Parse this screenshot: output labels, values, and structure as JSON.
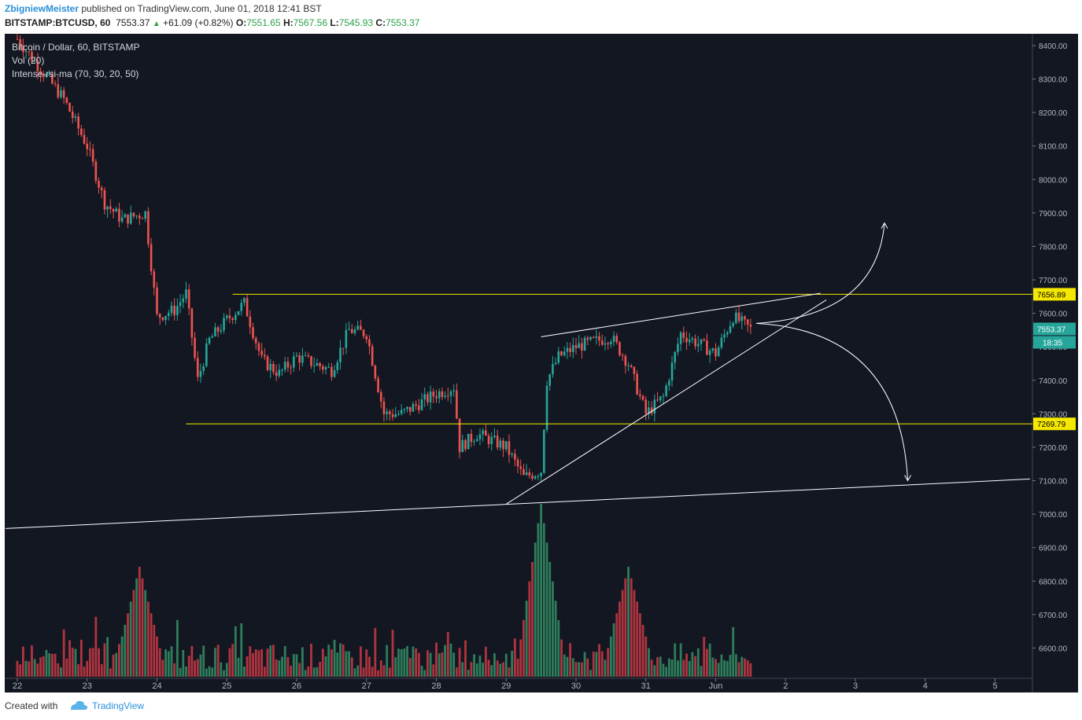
{
  "header": {
    "author": "ZbigniewMeister",
    "published_text": "published on TradingView.com, June 01, 2018 12:41 BST",
    "symbol": "BITSTAMP:BTCUSD, 60",
    "last": "7553.37",
    "change_arrow": "▲",
    "change": "+61.09 (+0.82%)",
    "o_label": "O:",
    "o_value": "7551.65",
    "h_label": "H:",
    "h_value": "7567.56",
    "l_label": "L:",
    "l_value": "7545.93",
    "c_label": "C:",
    "c_value": "7553.37"
  },
  "legend": {
    "main": "Bitcoin / Dollar, 60, BITSTAMP",
    "volume": "Vol (20)",
    "indicator": "Intense-rsi-ma (70, 30, 20, 50)"
  },
  "footer": {
    "created_with": "Created with",
    "brand": "TradingView"
  },
  "chart_data": {
    "type": "candlestick",
    "title": "Bitcoin / Dollar, 60, BITSTAMP",
    "symbol": "BITSTAMP:BTCUSD",
    "timeframe": "60",
    "x_tick_labels": [
      "22",
      "23",
      "24",
      "25",
      "26",
      "27",
      "28",
      "29",
      "30",
      "31",
      "Jun",
      "2",
      "3",
      "4",
      "5"
    ],
    "y_tick_labels": [
      "8400.00",
      "8300.00",
      "8200.00",
      "8100.00",
      "8000.00",
      "7900.00",
      "7800.00",
      "7700.00",
      "7600.00",
      "7500.00",
      "7400.00",
      "7300.00",
      "7200.00",
      "7100.00",
      "7000.00",
      "6900.00",
      "6800.00",
      "6700.00",
      "6600.00"
    ],
    "ylim": [
      6520,
      8430
    ],
    "price_path": [
      [
        "May 22 00:00",
        8420
      ],
      [
        "May 22 08:00",
        8330
      ],
      [
        "May 22 16:00",
        8240
      ],
      [
        "May 23 00:00",
        8100
      ],
      [
        "May 23 06:00",
        7930
      ],
      [
        "May 23 12:00",
        7880
      ],
      [
        "May 23 20:00",
        7900
      ],
      [
        "May 24 00:00",
        7590
      ],
      [
        "May 24 06:00",
        7610
      ],
      [
        "May 24 10:00",
        7660
      ],
      [
        "May 24 14:00",
        7400
      ],
      [
        "May 24 18:00",
        7520
      ],
      [
        "May 25 00:00",
        7580
      ],
      [
        "May 25 06:00",
        7630
      ],
      [
        "May 25 12:00",
        7460
      ],
      [
        "May 25 18:00",
        7420
      ],
      [
        "May 26 00:00",
        7470
      ],
      [
        "May 26 12:00",
        7430
      ],
      [
        "May 26 18:00",
        7550
      ],
      [
        "May 27 00:00",
        7540
      ],
      [
        "May 27 06:00",
        7300
      ],
      [
        "May 27 12:00",
        7300
      ],
      [
        "May 28 00:00",
        7360
      ],
      [
        "May 28 06:00",
        7380
      ],
      [
        "May 28 08:00",
        7200
      ],
      [
        "May 28 14:00",
        7240
      ],
      [
        "May 29 00:00",
        7200
      ],
      [
        "May 29 06:00",
        7110
      ],
      [
        "May 29 12:00",
        7130
      ],
      [
        "May 29 14:00",
        7400
      ],
      [
        "May 29 18:00",
        7470
      ],
      [
        "May 30 00:00",
        7500
      ],
      [
        "May 30 12:00",
        7530
      ],
      [
        "May 30 18:00",
        7450
      ],
      [
        "May 31 00:00",
        7300
      ],
      [
        "May 31 06:00",
        7350
      ],
      [
        "May 31 12:00",
        7540
      ],
      [
        "Jun 01 00:00",
        7480
      ],
      [
        "Jun 01 06:00",
        7590
      ],
      [
        "Jun 01 12:00",
        7553
      ]
    ],
    "volume_spikes": [
      [
        "May 23 18:00",
        "high"
      ],
      [
        "May 29 12:00",
        "max"
      ],
      [
        "May 30 18:00",
        "high"
      ]
    ],
    "price_markers": [
      {
        "label": "7656.89",
        "color": "#f5e800"
      },
      {
        "label": "7553.37",
        "color": "#26a69a"
      },
      {
        "label": "18:35",
        "color": "#26a69a"
      },
      {
        "label": "7269.79",
        "color": "#f5e800"
      }
    ],
    "horizontal_lines": [
      {
        "price": 7656.89,
        "color": "#f5e800"
      },
      {
        "price": 7269.79,
        "color": "#f5e800"
      }
    ],
    "drawings": [
      {
        "type": "trendline",
        "from": [
          "May 21 20:00",
          6957
        ],
        "to": [
          "Jun 05 12:00",
          7105
        ]
      },
      {
        "type": "trendline",
        "from": [
          "May 29 00:00",
          7030
        ],
        "to": [
          "Jun 02 14:00",
          7640
        ]
      },
      {
        "type": "trendline",
        "from": [
          "May 29 12:00",
          7530
        ],
        "to": [
          "Jun 02 12:00",
          7660
        ]
      },
      {
        "type": "arrow",
        "direction": "up",
        "target": [
          "Jun 03 10:00",
          7870
        ]
      },
      {
        "type": "arrow",
        "direction": "down",
        "target": [
          "Jun 03 18:00",
          7100
        ]
      }
    ],
    "colors": {
      "background": "#131722",
      "up_candle": "#26a69a",
      "down_candle": "#ef5350",
      "up_volume": "#2e7d5b",
      "down_volume": "#b0343f",
      "level_line": "#f5e800",
      "drawing": "#ffffff"
    }
  }
}
